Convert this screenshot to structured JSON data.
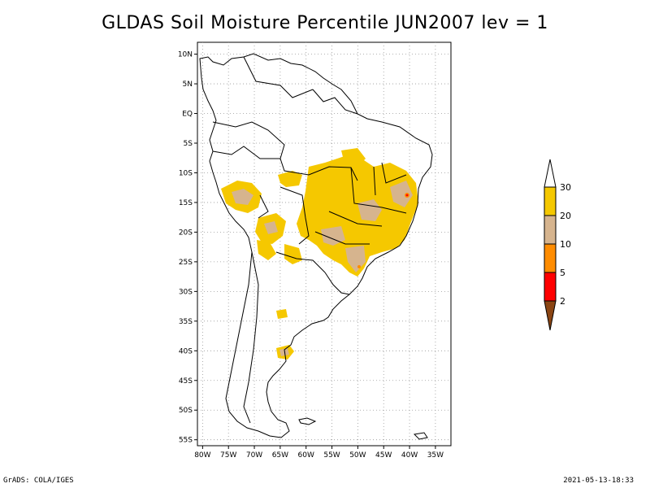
{
  "title": "GLDAS Soil Moisture Percentile JUN2007 lev = 1",
  "footer": {
    "credit": "GrADS: COLA/IGES",
    "timestamp": "2021-05-13-18:33"
  },
  "map": {
    "lon_ticks": [
      "80W",
      "75W",
      "70W",
      "65W",
      "60W",
      "55W",
      "50W",
      "45W",
      "40W",
      "35W"
    ],
    "lat_ticks": [
      "10N",
      "5N",
      "EQ",
      "5S",
      "10S",
      "15S",
      "20S",
      "25S",
      "30S",
      "35S",
      "40S",
      "45S",
      "50S",
      "55S"
    ],
    "lon_range": [
      -81,
      -32
    ],
    "lat_range": [
      12,
      -56
    ],
    "grid": "dotted"
  },
  "legend": {
    "labels": [
      "30",
      "20",
      "10",
      "5",
      "2"
    ],
    "colors": {
      "gt30": "#ffffff",
      "20_30": "#f5c800",
      "10_20": "#d6b48e",
      "5_10": "#ff8c00",
      "2_5": "#ff0000",
      "lt2": "#8b4513"
    }
  }
}
